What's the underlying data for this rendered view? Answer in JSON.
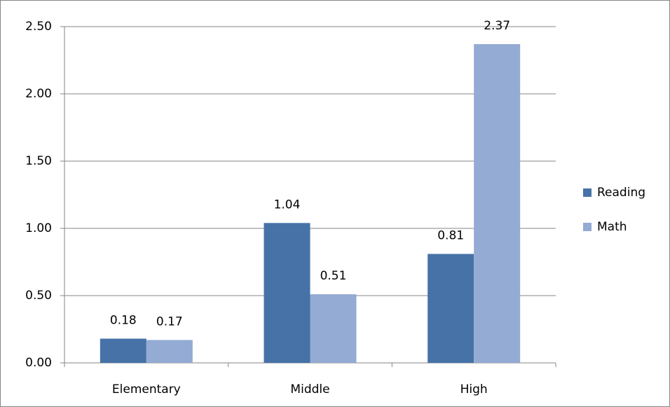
{
  "chart_data": {
    "type": "bar",
    "categories": [
      "Elementary",
      "Middle",
      "High"
    ],
    "series": [
      {
        "name": "Reading",
        "color": "#4672a8",
        "values": [
          0.18,
          1.04,
          0.81
        ]
      },
      {
        "name": "Math",
        "color": "#94abd3",
        "values": [
          0.17,
          0.51,
          2.37
        ]
      }
    ],
    "ylim": [
      0,
      2.5
    ],
    "yticks": [
      {
        "value": 0,
        "label": "0.00"
      },
      {
        "value": 0.5,
        "label": "0.50"
      },
      {
        "value": 1,
        "label": "1.00"
      },
      {
        "value": 1.5,
        "label": "1.50"
      },
      {
        "value": 2,
        "label": "2.00"
      },
      {
        "value": 2.5,
        "label": "2.50"
      }
    ],
    "grid": true,
    "legend": "right"
  }
}
